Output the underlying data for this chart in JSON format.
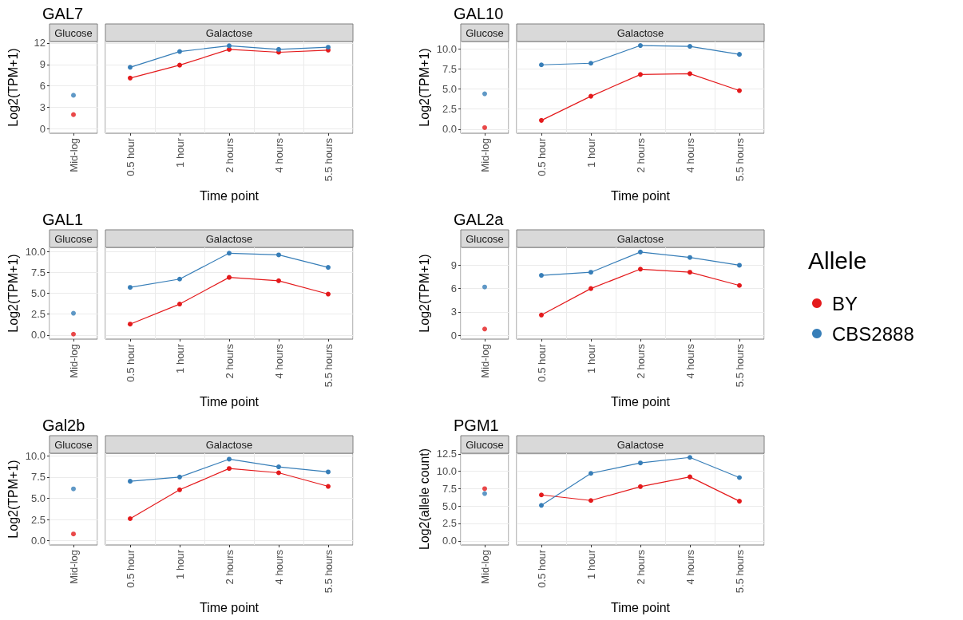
{
  "chart_data": [
    {
      "type": "scatter",
      "title": "GAL7",
      "subtitle": "Glucose",
      "ylabel": "Log2(TPM+1)",
      "categories": [
        "Mid-log"
      ],
      "ylim": [
        -0.6,
        12.2
      ],
      "yticks": [
        0,
        3,
        6,
        9,
        12
      ],
      "grid": true,
      "marker": "circle",
      "series": [
        {
          "color": "#e41a1c",
          "values": [
            2.0
          ]
        },
        {
          "color": "#377eb8",
          "values": [
            4.7
          ]
        }
      ]
    },
    {
      "type": "line",
      "subtitle": "Galactose",
      "xlabel": "Time point",
      "categories": [
        "0.5 hour",
        "1 hour",
        "2 hours",
        "4 hours",
        "5.5 hours"
      ],
      "ylim": [
        -0.6,
        12.2
      ],
      "yticks": [
        0,
        3,
        6,
        9,
        12
      ],
      "tick_labels": "x",
      "grid": true,
      "marker": "circle",
      "series": [
        {
          "color": "#e41a1c",
          "values": [
            7.1,
            8.9,
            11.1,
            10.7,
            11.0
          ]
        },
        {
          "color": "#377eb8",
          "values": [
            8.6,
            10.8,
            11.6,
            11.1,
            11.4
          ]
        }
      ]
    },
    {
      "type": "scatter",
      "title": "GAL10",
      "subtitle": "Glucose",
      "ylabel": "Log2(TPM+1)",
      "categories": [
        "Mid-log"
      ],
      "ylim": [
        -0.5,
        10.9
      ],
      "yticks": [
        {
          "value": 0,
          "label": "0.0"
        },
        {
          "value": 2.5,
          "label": "2.5"
        },
        {
          "value": 5,
          "label": "5.0"
        },
        {
          "value": 7.5,
          "label": "7.5"
        },
        {
          "value": 10,
          "label": "10.0"
        }
      ],
      "grid": true,
      "marker": "circle",
      "series": [
        {
          "color": "#e41a1c",
          "values": [
            0.2
          ]
        },
        {
          "color": "#377eb8",
          "values": [
            4.4
          ]
        }
      ]
    },
    {
      "type": "line",
      "subtitle": "Galactose",
      "xlabel": "Time point",
      "categories": [
        "0.5 hour",
        "1 hour",
        "2 hours",
        "4 hours",
        "5.5 hours"
      ],
      "ylim": [
        -0.5,
        10.9
      ],
      "yticks": [
        0,
        2.5,
        5,
        7.5,
        10
      ],
      "tick_labels": "x",
      "grid": true,
      "marker": "circle",
      "series": [
        {
          "color": "#e41a1c",
          "values": [
            1.1,
            4.1,
            6.8,
            6.9,
            4.8
          ]
        },
        {
          "color": "#377eb8",
          "values": [
            8.0,
            8.2,
            10.4,
            10.3,
            9.3
          ]
        }
      ]
    },
    {
      "type": "scatter",
      "title": "GAL1",
      "subtitle": "Glucose",
      "ylabel": "Log2(TPM+1)",
      "categories": [
        "Mid-log"
      ],
      "ylim": [
        -0.5,
        10.5
      ],
      "yticks": [
        {
          "value": 0,
          "label": "0.0"
        },
        {
          "value": 2.5,
          "label": "2.5"
        },
        {
          "value": 5,
          "label": "5.0"
        },
        {
          "value": 7.5,
          "label": "7.5"
        },
        {
          "value": 10,
          "label": "10.0"
        }
      ],
      "grid": true,
      "marker": "circle",
      "series": [
        {
          "color": "#e41a1c",
          "values": [
            0.1
          ]
        },
        {
          "color": "#377eb8",
          "values": [
            2.6
          ]
        }
      ]
    },
    {
      "type": "line",
      "subtitle": "Galactose",
      "xlabel": "Time point",
      "categories": [
        "0.5 hour",
        "1 hour",
        "2 hours",
        "4 hours",
        "5.5 hours"
      ],
      "ylim": [
        -0.5,
        10.5
      ],
      "yticks": [
        0,
        2.5,
        5,
        7.5,
        10
      ],
      "tick_labels": "x",
      "grid": true,
      "marker": "circle",
      "series": [
        {
          "color": "#e41a1c",
          "values": [
            1.3,
            3.7,
            6.9,
            6.5,
            4.9
          ]
        },
        {
          "color": "#377eb8",
          "values": [
            5.7,
            6.7,
            9.8,
            9.6,
            8.1
          ]
        }
      ]
    },
    {
      "type": "scatter",
      "title": "GAL2a",
      "subtitle": "Glucose",
      "ylabel": "Log2(TPM+1)",
      "categories": [
        "Mid-log"
      ],
      "ylim": [
        -0.5,
        11.3
      ],
      "yticks": [
        0,
        3,
        6,
        9
      ],
      "grid": true,
      "marker": "circle",
      "series": [
        {
          "color": "#e41a1c",
          "values": [
            0.8
          ]
        },
        {
          "color": "#377eb8",
          "values": [
            6.2
          ]
        }
      ]
    },
    {
      "type": "line",
      "subtitle": "Galactose",
      "xlabel": "Time point",
      "categories": [
        "0.5 hour",
        "1 hour",
        "2 hours",
        "4 hours",
        "5.5 hours"
      ],
      "ylim": [
        -0.5,
        11.3
      ],
      "yticks": [
        0,
        3,
        6,
        9
      ],
      "tick_labels": "x",
      "grid": true,
      "marker": "circle",
      "legend": "right",
      "legend_title": "Allele",
      "series": [
        {
          "name": "BY",
          "color": "#e41a1c",
          "values": [
            2.6,
            6.0,
            8.5,
            8.1,
            6.4
          ]
        },
        {
          "name": "CBS2888",
          "color": "#377eb8",
          "values": [
            7.7,
            8.1,
            10.7,
            10.0,
            9.0
          ]
        }
      ]
    },
    {
      "type": "scatter",
      "title": "Gal2b",
      "subtitle": "Glucose",
      "ylabel": "Log2(TPM+1)",
      "categories": [
        "Mid-log"
      ],
      "ylim": [
        -0.5,
        10.3
      ],
      "yticks": [
        {
          "value": 0,
          "label": "0.0"
        },
        {
          "value": 2.5,
          "label": "2.5"
        },
        {
          "value": 5,
          "label": "5.0"
        },
        {
          "value": 7.5,
          "label": "7.5"
        },
        {
          "value": 10,
          "label": "10.0"
        }
      ],
      "grid": true,
      "marker": "circle",
      "series": [
        {
          "color": "#e41a1c",
          "values": [
            0.8
          ]
        },
        {
          "color": "#377eb8",
          "values": [
            6.1
          ]
        }
      ]
    },
    {
      "type": "line",
      "subtitle": "Galactose",
      "xlabel": "Time point",
      "categories": [
        "0.5 hour",
        "1 hour",
        "2 hours",
        "4 hours",
        "5.5 hours"
      ],
      "ylim": [
        -0.5,
        10.3
      ],
      "yticks": [
        0,
        2.5,
        5,
        7.5,
        10
      ],
      "tick_labels": "x",
      "grid": true,
      "marker": "circle",
      "series": [
        {
          "color": "#e41a1c",
          "values": [
            2.6,
            6.0,
            8.5,
            8.0,
            6.4
          ]
        },
        {
          "color": "#377eb8",
          "values": [
            7.0,
            7.5,
            9.6,
            8.7,
            8.1
          ]
        }
      ]
    },
    {
      "type": "scatter",
      "title": "PGM1",
      "subtitle": "Glucose",
      "ylabel": "Log2(allele count)",
      "categories": [
        "Mid-log"
      ],
      "ylim": [
        -0.6,
        12.6
      ],
      "yticks": [
        {
          "value": 0,
          "label": "0.0"
        },
        {
          "value": 2.5,
          "label": "2.5"
        },
        {
          "value": 5,
          "label": "5.0"
        },
        {
          "value": 7.5,
          "label": "7.5"
        },
        {
          "value": 10,
          "label": "10.0"
        },
        {
          "value": 12.5,
          "label": "12.5"
        }
      ],
      "grid": true,
      "marker": "circle",
      "series": [
        {
          "color": "#e41a1c",
          "values": [
            7.5
          ]
        },
        {
          "color": "#377eb8",
          "values": [
            6.8
          ]
        }
      ]
    },
    {
      "type": "line",
      "subtitle": "Galactose",
      "xlabel": "Time point",
      "categories": [
        "0.5 hour",
        "1 hour",
        "2 hours",
        "4 hours",
        "5.5 hours"
      ],
      "ylim": [
        -0.6,
        12.6
      ],
      "yticks": [
        0,
        2.5,
        5,
        7.5,
        10,
        12.5
      ],
      "tick_labels": "x",
      "grid": true,
      "marker": "circle",
      "series": [
        {
          "color": "#e41a1c",
          "values": [
            6.6,
            5.8,
            7.8,
            9.2,
            5.7
          ]
        },
        {
          "color": "#377eb8",
          "values": [
            5.1,
            9.7,
            11.2,
            12.0,
            9.1
          ]
        }
      ]
    }
  ]
}
